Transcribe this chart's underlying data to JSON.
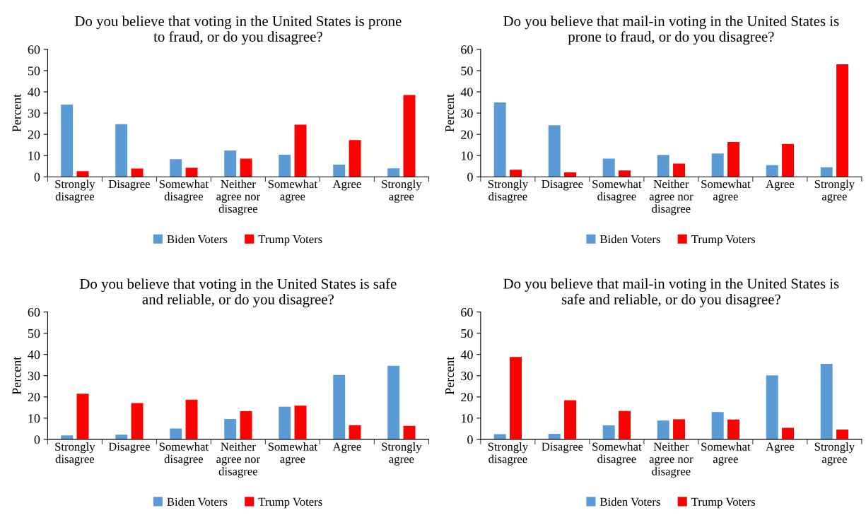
{
  "chart_data": [
    {
      "type": "bar",
      "title": "Do you believe that voting in the United States is prone\nto fraud, or do you disagree?",
      "ylabel": "Percent",
      "categories": [
        "Strongly\ndisagree",
        "Disagree",
        "Somewhat\ndisagree",
        "Neither\nagree nor\ndisagree",
        "Somewhat\nagree",
        "Agree",
        "Strongly\nagree"
      ],
      "ylim": [
        0,
        60
      ],
      "yticks": [
        0,
        10,
        20,
        30,
        40,
        50,
        60
      ],
      "legend": "bottom",
      "grid": false,
      "series": [
        {
          "name": "Biden Voters",
          "color": "#5b9bd5",
          "values": [
            34.0,
            24.8,
            8.3,
            12.4,
            10.4,
            5.7,
            4.0
          ]
        },
        {
          "name": "Trump Voters",
          "color": "#ff0000",
          "values": [
            2.7,
            3.9,
            4.2,
            8.6,
            24.5,
            17.3,
            38.5
          ]
        }
      ]
    },
    {
      "type": "bar",
      "title": "Do you believe that mail-in voting in the United States is\nprone to fraud, or do you disagree?",
      "ylabel": "Percent",
      "categories": [
        "Strongly\ndisagree",
        "Disagree",
        "Somewhat\ndisagree",
        "Neither\nagree nor\ndisagree",
        "Somewhat\nagree",
        "Agree",
        "Strongly\nagree"
      ],
      "ylim": [
        0,
        60
      ],
      "yticks": [
        0,
        10,
        20,
        30,
        40,
        50,
        60
      ],
      "legend": "bottom",
      "grid": false,
      "series": [
        {
          "name": "Biden Voters",
          "color": "#5b9bd5",
          "values": [
            35.0,
            24.3,
            8.6,
            10.3,
            11.0,
            5.5,
            4.5
          ]
        },
        {
          "name": "Trump Voters",
          "color": "#ff0000",
          "values": [
            3.3,
            2.1,
            3.0,
            6.2,
            16.4,
            15.5,
            53.0
          ]
        }
      ]
    },
    {
      "type": "bar",
      "title": "Do you believe that voting in the United States is safe\nand reliable, or do you disagree?",
      "ylabel": "Percent",
      "categories": [
        "Strongly\ndisagree",
        "Disagree",
        "Somewhat\ndisagree",
        "Neither\nagree nor\ndisagree",
        "Somewhat\nagree",
        "Agree",
        "Strongly\nagree"
      ],
      "ylim": [
        0,
        60
      ],
      "yticks": [
        0,
        10,
        20,
        30,
        40,
        50,
        60
      ],
      "legend": "bottom",
      "grid": false,
      "series": [
        {
          "name": "Biden Voters",
          "color": "#5b9bd5",
          "values": [
            1.9,
            2.2,
            5.1,
            9.6,
            15.4,
            30.3,
            34.7
          ]
        },
        {
          "name": "Trump Voters",
          "color": "#ff0000",
          "values": [
            21.5,
            17.1,
            18.7,
            13.3,
            15.9,
            6.7,
            6.4
          ]
        }
      ]
    },
    {
      "type": "bar",
      "title": "Do you believe that mail-in voting in the United States is\nsafe and reliable, or do you disagree?",
      "ylabel": "Percent",
      "categories": [
        "Strongly\ndisagree",
        "Disagree",
        "Somewhat\ndisagree",
        "Neither\nagree nor\ndisagree",
        "Somewhat\nagree",
        "Agree",
        "Strongly\nagree"
      ],
      "ylim": [
        0,
        60
      ],
      "yticks": [
        0,
        10,
        20,
        30,
        40,
        50,
        60
      ],
      "legend": "bottom",
      "grid": false,
      "series": [
        {
          "name": "Biden Voters",
          "color": "#5b9bd5",
          "values": [
            2.5,
            2.6,
            6.6,
            8.9,
            12.9,
            30.2,
            35.6
          ]
        },
        {
          "name": "Trump Voters",
          "color": "#ff0000",
          "values": [
            38.8,
            18.4,
            13.4,
            9.5,
            9.4,
            5.5,
            4.6
          ]
        }
      ]
    }
  ]
}
